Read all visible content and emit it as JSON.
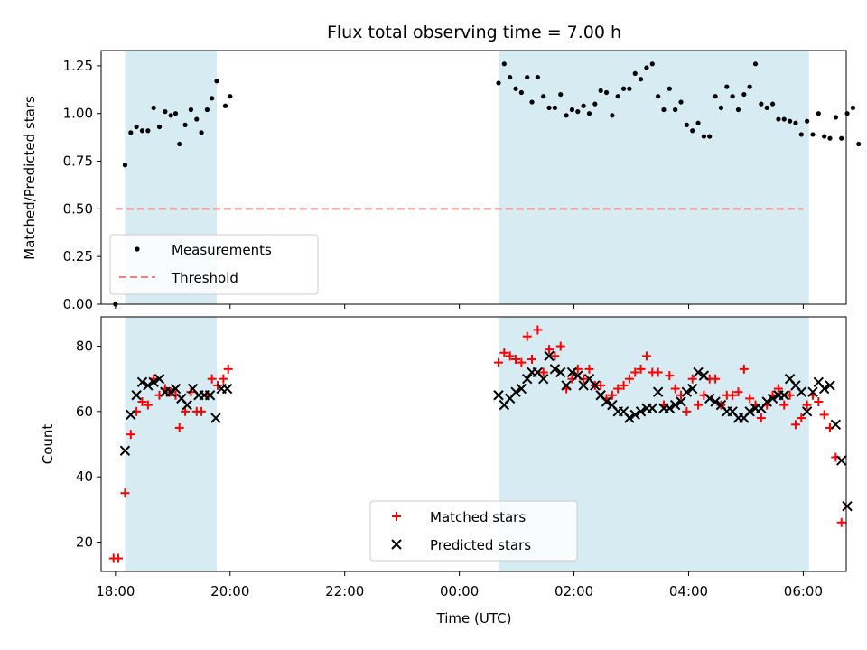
{
  "chart_data": [
    {
      "type": "scatter",
      "title": "Flux total observing time = 7.00 h",
      "xlabel": "",
      "ylabel": "Matched/Predicted stars",
      "xlim": [
        "17:45",
        "30:45"
      ],
      "ylim": [
        0,
        1.33
      ],
      "yticks": [
        "0.00",
        "0.25",
        "0.50",
        "0.75",
        "1.00",
        "1.25"
      ],
      "ytick_values": [
        0,
        0.25,
        0.5,
        0.75,
        1.0,
        1.25
      ],
      "legend_position": "lower-left",
      "shaded_regions": [
        [
          "18:10",
          "19:46"
        ],
        [
          "00:41",
          "06:06"
        ]
      ],
      "colors": {
        "shade": "#add8e6",
        "measurements": "#000000",
        "threshold": "#f08080"
      },
      "threshold": {
        "name": "Threshold",
        "value": 0.5,
        "x_range": [
          "18:00",
          "30:00"
        ]
      },
      "series": [
        {
          "name": "Measurements",
          "points": [
            [
              "18:00",
              0.0
            ],
            [
              "18:10",
              0.73
            ],
            [
              "18:16",
              0.9
            ],
            [
              "18:22",
              0.93
            ],
            [
              "18:28",
              0.91
            ],
            [
              "18:34",
              0.91
            ],
            [
              "18:40",
              1.03
            ],
            [
              "18:46",
              0.93
            ],
            [
              "18:52",
              1.01
            ],
            [
              "18:58",
              0.99
            ],
            [
              "19:03",
              1.0
            ],
            [
              "19:07",
              0.84
            ],
            [
              "19:13",
              0.94
            ],
            [
              "19:19",
              1.02
            ],
            [
              "19:25",
              0.97
            ],
            [
              "19:30",
              0.9
            ],
            [
              "19:36",
              1.02
            ],
            [
              "19:41",
              1.08
            ],
            [
              "19:46",
              1.17
            ],
            [
              "19:55",
              1.04
            ],
            [
              "20:00",
              1.09
            ],
            [
              "00:41",
              1.16
            ],
            [
              "00:47",
              1.26
            ],
            [
              "00:53",
              1.19
            ],
            [
              "00:59",
              1.13
            ],
            [
              "01:05",
              1.11
            ],
            [
              "01:11",
              1.19
            ],
            [
              "01:16",
              1.06
            ],
            [
              "01:22",
              1.19
            ],
            [
              "01:28",
              1.09
            ],
            [
              "01:34",
              1.03
            ],
            [
              "01:40",
              1.03
            ],
            [
              "01:46",
              1.1
            ],
            [
              "01:52",
              0.99
            ],
            [
              "01:58",
              1.02
            ],
            [
              "02:04",
              1.01
            ],
            [
              "02:10",
              1.04
            ],
            [
              "02:16",
              1.0
            ],
            [
              "02:22",
              1.05
            ],
            [
              "02:28",
              1.12
            ],
            [
              "02:34",
              1.11
            ],
            [
              "02:40",
              0.99
            ],
            [
              "02:46",
              1.09
            ],
            [
              "02:52",
              1.13
            ],
            [
              "02:58",
              1.13
            ],
            [
              "03:04",
              1.21
            ],
            [
              "03:10",
              1.18
            ],
            [
              "03:16",
              1.24
            ],
            [
              "03:22",
              1.26
            ],
            [
              "03:28",
              1.09
            ],
            [
              "03:34",
              1.02
            ],
            [
              "03:40",
              1.13
            ],
            [
              "03:46",
              1.02
            ],
            [
              "03:52",
              1.06
            ],
            [
              "03:58",
              0.94
            ],
            [
              "04:04",
              0.91
            ],
            [
              "04:10",
              0.95
            ],
            [
              "04:16",
              0.88
            ],
            [
              "04:22",
              0.88
            ],
            [
              "04:28",
              1.09
            ],
            [
              "04:34",
              1.03
            ],
            [
              "04:40",
              1.14
            ],
            [
              "04:46",
              1.09
            ],
            [
              "04:52",
              1.02
            ],
            [
              "04:58",
              1.1
            ],
            [
              "05:04",
              1.14
            ],
            [
              "05:10",
              1.26
            ],
            [
              "05:16",
              1.05
            ],
            [
              "05:22",
              1.03
            ],
            [
              "05:28",
              1.05
            ],
            [
              "05:34",
              0.97
            ],
            [
              "05:40",
              0.97
            ],
            [
              "05:46",
              0.96
            ],
            [
              "05:52",
              0.95
            ],
            [
              "05:58",
              0.89
            ],
            [
              "06:04",
              0.96
            ],
            [
              "06:10",
              0.89
            ],
            [
              "06:16",
              1.0
            ],
            [
              "06:22",
              0.88
            ],
            [
              "06:28",
              0.87
            ],
            [
              "06:34",
              0.98
            ],
            [
              "06:40",
              0.87
            ],
            [
              "06:46",
              1.0
            ],
            [
              "06:52",
              1.03
            ],
            [
              "06:58",
              0.84
            ]
          ]
        }
      ]
    },
    {
      "type": "scatter",
      "title": "",
      "xlabel": "Time (UTC)",
      "ylabel": "Count",
      "xlim": [
        "17:45",
        "30:45"
      ],
      "ylim": [
        11,
        89
      ],
      "yticks": [
        "20",
        "40",
        "60",
        "80"
      ],
      "ytick_values": [
        20,
        40,
        60,
        80
      ],
      "xticks": [
        "18:00",
        "20:00",
        "22:00",
        "00:00",
        "02:00",
        "04:00",
        "06:00"
      ],
      "legend_position": "lower-center",
      "shaded_regions": [
        [
          "18:10",
          "19:46"
        ],
        [
          "00:41",
          "06:06"
        ]
      ],
      "colors": {
        "shade": "#add8e6",
        "matched": "#ff0000",
        "predicted": "#000000"
      },
      "series": [
        {
          "name": "Matched stars",
          "marker": "plus",
          "points": [
            [
              "17:58",
              15
            ],
            [
              "18:03",
              15
            ],
            [
              "18:10",
              35
            ],
            [
              "18:16",
              53
            ],
            [
              "18:22",
              60
            ],
            [
              "18:28",
              63
            ],
            [
              "18:34",
              62
            ],
            [
              "18:40",
              70
            ],
            [
              "18:46",
              65
            ],
            [
              "18:52",
              67
            ],
            [
              "18:58",
              66
            ],
            [
              "19:03",
              65
            ],
            [
              "19:07",
              55
            ],
            [
              "19:13",
              60
            ],
            [
              "19:19",
              66
            ],
            [
              "19:25",
              60
            ],
            [
              "19:30",
              60
            ],
            [
              "19:36",
              65
            ],
            [
              "19:41",
              70
            ],
            [
              "19:47",
              68
            ],
            [
              "19:53",
              70
            ],
            [
              "19:58",
              73
            ],
            [
              "00:41",
              75
            ],
            [
              "00:47",
              78
            ],
            [
              "00:53",
              77
            ],
            [
              "00:59",
              76
            ],
            [
              "01:05",
              75
            ],
            [
              "01:11",
              83
            ],
            [
              "01:16",
              76
            ],
            [
              "01:22",
              85
            ],
            [
              "01:28",
              72
            ],
            [
              "01:34",
              79
            ],
            [
              "01:40",
              77
            ],
            [
              "01:46",
              80
            ],
            [
              "01:52",
              67
            ],
            [
              "01:58",
              70
            ],
            [
              "02:04",
              73
            ],
            [
              "02:10",
              70
            ],
            [
              "02:16",
              73
            ],
            [
              "02:22",
              68
            ],
            [
              "02:28",
              68
            ],
            [
              "02:34",
              64
            ],
            [
              "02:40",
              65
            ],
            [
              "02:46",
              67
            ],
            [
              "02:52",
              68
            ],
            [
              "02:58",
              70
            ],
            [
              "03:04",
              72
            ],
            [
              "03:10",
              73
            ],
            [
              "03:16",
              77
            ],
            [
              "03:22",
              72
            ],
            [
              "03:28",
              72
            ],
            [
              "03:34",
              62
            ],
            [
              "03:40",
              71
            ],
            [
              "03:46",
              67
            ],
            [
              "03:52",
              65
            ],
            [
              "03:58",
              60
            ],
            [
              "04:04",
              70
            ],
            [
              "04:10",
              62
            ],
            [
              "04:16",
              65
            ],
            [
              "04:22",
              70
            ],
            [
              "04:28",
              70
            ],
            [
              "04:34",
              62
            ],
            [
              "04:40",
              65
            ],
            [
              "04:46",
              65
            ],
            [
              "04:52",
              66
            ],
            [
              "04:58",
              73
            ],
            [
              "05:04",
              64
            ],
            [
              "05:10",
              62
            ],
            [
              "05:16",
              58
            ],
            [
              "05:22",
              62
            ],
            [
              "05:28",
              65
            ],
            [
              "05:34",
              67
            ],
            [
              "05:40",
              62
            ],
            [
              "05:46",
              65
            ],
            [
              "05:52",
              56
            ],
            [
              "05:58",
              58
            ],
            [
              "06:04",
              62
            ],
            [
              "06:10",
              65
            ],
            [
              "06:16",
              63
            ],
            [
              "06:22",
              59
            ],
            [
              "06:28",
              55
            ],
            [
              "06:34",
              46
            ],
            [
              "06:40",
              26
            ]
          ]
        },
        {
          "name": "Predicted stars",
          "marker": "x",
          "points": [
            [
              "18:10",
              48
            ],
            [
              "18:16",
              59
            ],
            [
              "18:22",
              65
            ],
            [
              "18:28",
              69
            ],
            [
              "18:34",
              68
            ],
            [
              "18:40",
              69
            ],
            [
              "18:46",
              70
            ],
            [
              "18:52",
              66
            ],
            [
              "18:58",
              66
            ],
            [
              "19:03",
              67
            ],
            [
              "19:09",
              64
            ],
            [
              "19:15",
              62
            ],
            [
              "19:21",
              67
            ],
            [
              "19:27",
              65
            ],
            [
              "19:33",
              65
            ],
            [
              "19:39",
              65
            ],
            [
              "19:45",
              58
            ],
            [
              "19:51",
              67
            ],
            [
              "19:57",
              67
            ],
            [
              "00:41",
              65
            ],
            [
              "00:47",
              62
            ],
            [
              "00:53",
              64
            ],
            [
              "00:59",
              66
            ],
            [
              "01:05",
              67
            ],
            [
              "01:11",
              70
            ],
            [
              "01:16",
              72
            ],
            [
              "01:22",
              72
            ],
            [
              "01:28",
              70
            ],
            [
              "01:34",
              77
            ],
            [
              "01:40",
              73
            ],
            [
              "01:46",
              72
            ],
            [
              "01:52",
              68
            ],
            [
              "01:58",
              72
            ],
            [
              "02:04",
              71
            ],
            [
              "02:10",
              68
            ],
            [
              "02:16",
              70
            ],
            [
              "02:22",
              68
            ],
            [
              "02:28",
              65
            ],
            [
              "02:34",
              63
            ],
            [
              "02:40",
              62
            ],
            [
              "02:46",
              60
            ],
            [
              "02:52",
              60
            ],
            [
              "02:58",
              58
            ],
            [
              "03:04",
              59
            ],
            [
              "03:10",
              60
            ],
            [
              "03:16",
              61
            ],
            [
              "03:22",
              61
            ],
            [
              "03:28",
              66
            ],
            [
              "03:34",
              61
            ],
            [
              "03:40",
              61
            ],
            [
              "03:46",
              62
            ],
            [
              "03:52",
              63
            ],
            [
              "03:58",
              66
            ],
            [
              "04:04",
              67
            ],
            [
              "04:10",
              72
            ],
            [
              "04:16",
              71
            ],
            [
              "04:22",
              64
            ],
            [
              "04:28",
              63
            ],
            [
              "04:34",
              62
            ],
            [
              "04:40",
              60
            ],
            [
              "04:46",
              60
            ],
            [
              "04:52",
              58
            ],
            [
              "04:58",
              58
            ],
            [
              "05:04",
              60
            ],
            [
              "05:10",
              61
            ],
            [
              "05:16",
              61
            ],
            [
              "05:22",
              63
            ],
            [
              "05:28",
              64
            ],
            [
              "05:34",
              65
            ],
            [
              "05:40",
              65
            ],
            [
              "05:46",
              70
            ],
            [
              "05:52",
              68
            ],
            [
              "05:58",
              66
            ],
            [
              "06:04",
              60
            ],
            [
              "06:10",
              66
            ],
            [
              "06:16",
              69
            ],
            [
              "06:22",
              67
            ],
            [
              "06:28",
              68
            ],
            [
              "06:34",
              56
            ],
            [
              "06:40",
              45
            ],
            [
              "06:46",
              31
            ]
          ]
        }
      ]
    }
  ]
}
